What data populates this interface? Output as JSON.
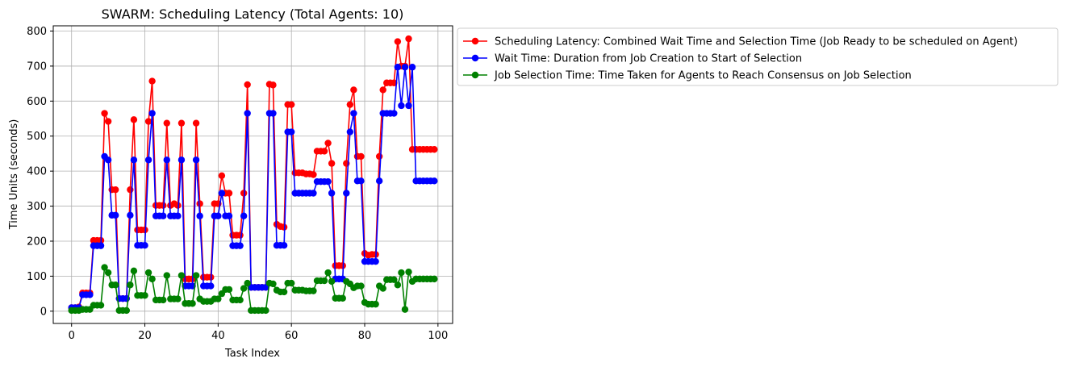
{
  "chart_data": {
    "type": "line",
    "title": "SWARM: Scheduling Latency (Total Agents: 10)",
    "xlabel": "Task Index",
    "ylabel": "Time Units (seconds)",
    "xlim": [
      -5,
      104
    ],
    "ylim": [
      -35,
      815
    ],
    "x_ticks": [
      0,
      20,
      40,
      60,
      80,
      100
    ],
    "y_ticks": [
      0,
      100,
      200,
      300,
      400,
      500,
      600,
      700,
      800
    ],
    "grid": true,
    "legend_position": "outside-top-right",
    "x": [
      0,
      1,
      2,
      3,
      4,
      5,
      6,
      7,
      8,
      9,
      10,
      11,
      12,
      13,
      14,
      15,
      16,
      17,
      18,
      19,
      20,
      21,
      22,
      23,
      24,
      25,
      26,
      27,
      28,
      29,
      30,
      31,
      32,
      33,
      34,
      35,
      36,
      37,
      38,
      39,
      40,
      41,
      42,
      43,
      44,
      45,
      46,
      47,
      48,
      49,
      50,
      51,
      52,
      53,
      54,
      55,
      56,
      57,
      58,
      59,
      60,
      61,
      62,
      63,
      64,
      65,
      66,
      67,
      68,
      69,
      70,
      71,
      72,
      73,
      74,
      75,
      76,
      77,
      78,
      79,
      80,
      81,
      82,
      83,
      84,
      85,
      86,
      87,
      88,
      89,
      90,
      91,
      92,
      93,
      94,
      95,
      96,
      97,
      98,
      99
    ],
    "series": [
      {
        "name": "Scheduling Latency: Combined Wait Time and Selection Time (Job Ready to be scheduled on Agent)",
        "color": "#ff0000",
        "values": [
          10,
          10,
          12,
          52,
          52,
          52,
          202,
          202,
          202,
          565,
          542,
          347,
          347,
          36,
          36,
          36,
          347,
          547,
          232,
          232,
          232,
          542,
          657,
          302,
          302,
          302,
          537,
          302,
          307,
          302,
          537,
          92,
          92,
          92,
          537,
          307,
          97,
          97,
          97,
          307,
          307,
          387,
          337,
          337,
          217,
          217,
          217,
          337,
          647,
          68,
          68,
          68,
          68,
          68,
          648,
          646,
          248,
          242,
          240,
          590,
          590,
          395,
          395,
          395,
          392,
          392,
          390,
          457,
          457,
          457,
          480,
          422,
          130,
          130,
          130,
          422,
          590,
          632,
          442,
          442,
          165,
          160,
          162,
          162,
          442,
          632,
          652,
          652,
          652,
          770,
          700,
          700,
          778,
          462,
          462,
          462,
          462,
          462,
          462,
          462
        ]
      },
      {
        "name": "Wait Time: Duration from Job Creation to Start of Selection",
        "color": "#0000ff",
        "values": [
          10,
          10,
          10,
          47,
          47,
          47,
          187,
          187,
          187,
          442,
          432,
          274,
          274,
          36,
          36,
          36,
          274,
          432,
          188,
          188,
          188,
          432,
          565,
          272,
          272,
          272,
          432,
          272,
          272,
          272,
          432,
          72,
          72,
          72,
          432,
          272,
          72,
          72,
          72,
          272,
          272,
          337,
          272,
          272,
          187,
          187,
          187,
          272,
          565,
          68,
          68,
          68,
          68,
          68,
          565,
          565,
          188,
          188,
          188,
          512,
          512,
          337,
          337,
          337,
          337,
          337,
          337,
          370,
          370,
          370,
          370,
          337,
          92,
          92,
          92,
          337,
          512,
          565,
          372,
          372,
          142,
          142,
          142,
          142,
          372,
          565,
          565,
          565,
          565,
          697,
          587,
          697,
          587,
          697,
          372,
          372,
          372,
          372,
          372,
          372
        ]
      },
      {
        "name": "Job Selection Time: Time Taken for Agents to Reach Consensus on Job Selection",
        "color": "#008000",
        "values": [
          2,
          2,
          2,
          5,
          5,
          5,
          17,
          17,
          17,
          125,
          110,
          75,
          75,
          2,
          2,
          2,
          75,
          115,
          45,
          45,
          45,
          110,
          92,
          32,
          32,
          32,
          102,
          35,
          35,
          35,
          102,
          22,
          22,
          22,
          102,
          35,
          28,
          28,
          28,
          35,
          35,
          50,
          62,
          62,
          32,
          32,
          32,
          65,
          80,
          2,
          2,
          2,
          2,
          2,
          80,
          78,
          60,
          55,
          55,
          80,
          80,
          60,
          60,
          60,
          58,
          58,
          58,
          87,
          87,
          87,
          110,
          85,
          37,
          37,
          37,
          85,
          78,
          67,
          72,
          72,
          25,
          20,
          20,
          20,
          72,
          65,
          90,
          90,
          90,
          75,
          110,
          5,
          112,
          85,
          92,
          92,
          92,
          92,
          92,
          92
        ]
      }
    ]
  }
}
